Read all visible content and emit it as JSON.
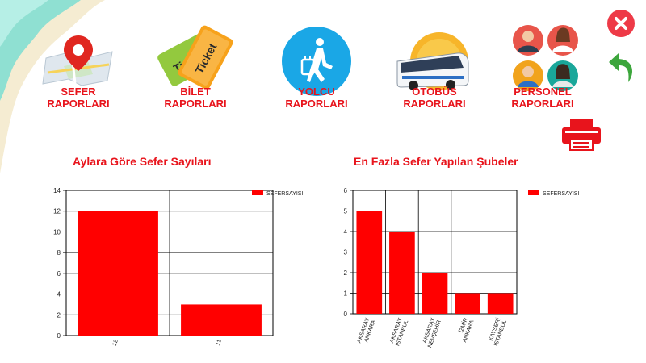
{
  "nav": {
    "items": [
      {
        "label": "SEFER\nRAPORLARI",
        "icon": "map-pin-icon"
      },
      {
        "label": "BİLET\nRAPORLARI",
        "icon": "ticket-icon"
      },
      {
        "label": "YOLCU\nRAPORLARI",
        "icon": "traveler-icon"
      },
      {
        "label": "OTOBÜS\nRAPORLARI",
        "icon": "bus-icon"
      },
      {
        "label": "PERSONEL\nRAPORLARI",
        "icon": "staff-icon"
      }
    ]
  },
  "ticket_text": {
    "front": "Ticket",
    "back": "Ticket"
  },
  "actions": {
    "close": "close-icon",
    "back": "back-arrow-icon",
    "print": "printer-icon"
  },
  "colors": {
    "accent": "#e8141c",
    "bar": "#ff0000",
    "close": "#ee3a47",
    "back": "#3ca63c"
  },
  "chart_data": [
    {
      "type": "bar",
      "title": "Aylara Göre Sefer Sayıları",
      "categories": [
        "12",
        "11"
      ],
      "series": [
        {
          "name": "SEFERSAYISI",
          "values": [
            12,
            3
          ]
        }
      ],
      "ylim": [
        0,
        14
      ],
      "yticks": [
        0,
        2,
        4,
        6,
        8,
        10,
        12,
        14
      ],
      "grid": true,
      "legend": "top-right"
    },
    {
      "type": "bar",
      "title": "En Fazla Sefer Yapılan Şubeler",
      "categories": [
        [
          "AKSARAY",
          "ANKARA"
        ],
        [
          "AKSARAY",
          "İSTANBUL"
        ],
        [
          "AKSARAY",
          "NEVŞEHİR"
        ],
        [
          "İZMİR",
          "ANKARA"
        ],
        [
          "KAYSERİ",
          "İSTANBUL"
        ]
      ],
      "series": [
        {
          "name": "SEFERSAYISI",
          "values": [
            5,
            4,
            2,
            1,
            1
          ]
        }
      ],
      "ylim": [
        0,
        6
      ],
      "yticks": [
        0,
        1,
        2,
        3,
        4,
        5,
        6
      ],
      "grid": true,
      "legend": "top-right"
    }
  ]
}
